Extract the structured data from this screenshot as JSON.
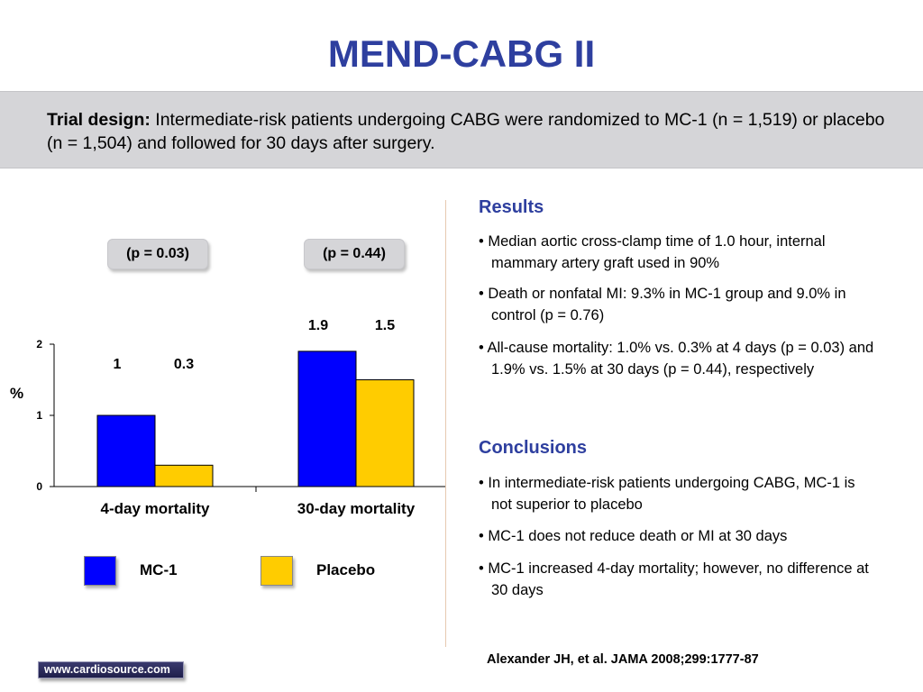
{
  "title": "MEND-CABG II",
  "trial_design": {
    "label": "Trial design:",
    "text": "Intermediate-risk patients undergoing CABG were randomized to MC-1 (n = 1,519) or placebo (n = 1,504) and followed for 30 days after surgery."
  },
  "p_values": [
    "(p = 0.03)",
    "(p = 0.44)"
  ],
  "chart_data": {
    "type": "bar",
    "categories": [
      "4-day mortality",
      "30-day mortality"
    ],
    "series": [
      {
        "name": "MC-1",
        "values": [
          1,
          1.9
        ],
        "value_labels": [
          "1",
          "1.9"
        ],
        "color": "#0000ff"
      },
      {
        "name": "Placebo",
        "values": [
          0.3,
          1.5
        ],
        "value_labels": [
          "0.3",
          "1.5"
        ],
        "color": "#ffcc00"
      }
    ],
    "ylabel": "%",
    "ylim": [
      0,
      2
    ],
    "yticks": [
      "0",
      "1",
      "2"
    ],
    "ytick_values": [
      0,
      1,
      2
    ],
    "grid": false,
    "legend": "bottom"
  },
  "results": {
    "heading": "Results",
    "bullets": [
      "• Median aortic cross-clamp time of 1.0 hour, internal mammary artery graft used in 90%",
      "• Death or nonfatal MI: 9.3% in MC-1 group and 9.0% in control (p = 0.76)",
      "• All-cause mortality: 1.0% vs. 0.3% at 4 days (p = 0.03) and 1.9% vs. 1.5% at 30 days (p = 0.44), respectively"
    ]
  },
  "conclusions": {
    "heading": "Conclusions",
    "bullets": [
      "• In intermediate-risk patients undergoing CABG, MC-1 is not superior to placebo",
      "• MC-1 does not reduce death or MI at 30 days",
      "• MC-1 increased 4-day mortality; however, no difference at 30 days"
    ]
  },
  "citation": "Alexander JH, et al. JAMA 2008;299:1777-87",
  "logo_text": "www.cardiosource.com"
}
